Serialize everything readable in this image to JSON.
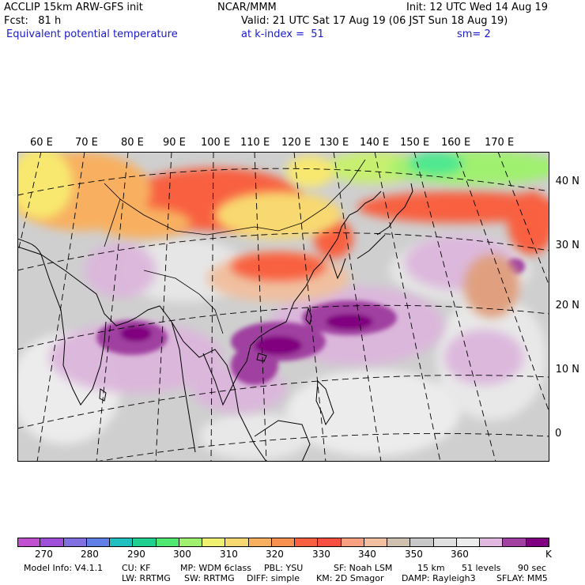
{
  "header": {
    "model_line1": "ACCLIP 15km ARW-GFS init",
    "fcst_label": "Fcst:   81 h",
    "field_name": "Equivalent potential temperature",
    "center": "NCAR/MMM",
    "init": "Init: 12 UTC Wed 14 Aug 19",
    "valid": "Valid: 21 UTC Sat 17 Aug 19 (06 JST Sun 18 Aug 19)",
    "level": "at k-index =  51",
    "smooth": "sm= 2"
  },
  "map": {
    "longitude_labels": [
      "60 E",
      "70 E",
      "80 E",
      "90 E",
      "100 E",
      "110 E",
      "120 E",
      "130 E",
      "140 E",
      "150 E",
      "160 E",
      "170 E"
    ],
    "latitude_labels": [
      "40 N",
      "30 N",
      "20 N",
      "10 N",
      "0"
    ]
  },
  "colorbar": {
    "colors": [
      "#c050d0",
      "#a050d8",
      "#8070e0",
      "#6080e8",
      "#20c0c0",
      "#20d090",
      "#50e870",
      "#a0f070",
      "#f0f070",
      "#f8d870",
      "#f8b060",
      "#f89050",
      "#f86040",
      "#f85040",
      "#f8a080",
      "#f0c0a0",
      "#d0c0b0",
      "#c8c8c8",
      "#e0e0e0",
      "#ececec",
      "#e0b8e0",
      "#a040a0",
      "#800080"
    ],
    "tick_labels": [
      "270",
      "280",
      "290",
      "300",
      "310",
      "320",
      "330",
      "340",
      "350",
      "360",
      "K"
    ]
  },
  "footer": {
    "line1": [
      "Model Info: V4.1.1",
      "CU: KF",
      "MP: WDM 6class",
      "PBL: YSU",
      "SF: Noah LSM",
      "15 km",
      "51 levels",
      "90 sec"
    ],
    "line2": [
      "LW: RRTMG",
      "SW: RRTMG",
      "DIFF: simple",
      "KM: 2D Smagor",
      "DAMP: Rayleigh3",
      "SFLAY: MM5"
    ]
  }
}
